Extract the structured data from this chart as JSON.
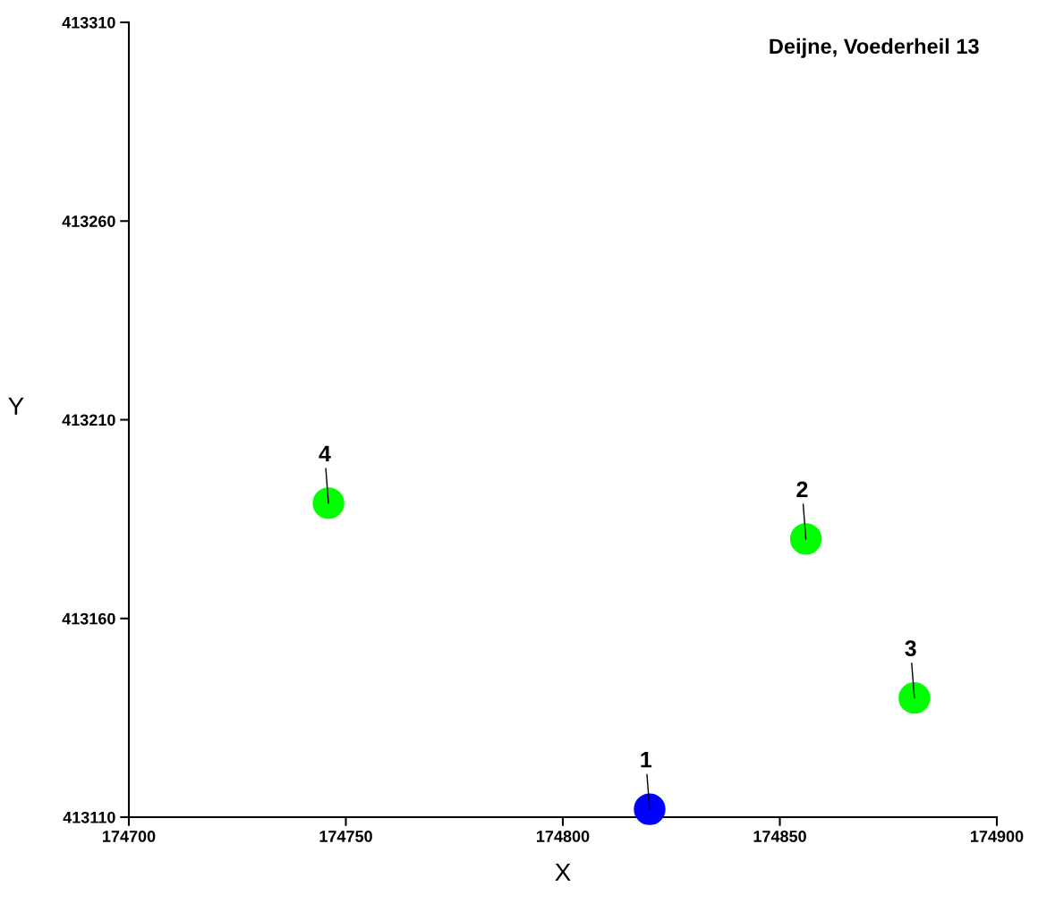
{
  "chart_data": {
    "type": "scatter",
    "title": "Deijne, Voederheil 13",
    "xlabel": "X",
    "ylabel": "Y",
    "x": [
      174820,
      174856,
      174881,
      174746
    ],
    "values": [
      413112,
      413180,
      413140,
      413189
    ],
    "colors": [
      "#0000ff",
      "#00ff00",
      "#00ff00",
      "#00ff00"
    ],
    "marker": "circle",
    "xlim": [
      174700,
      174900
    ],
    "xticks": [
      174700,
      174750,
      174800,
      174850,
      174900
    ],
    "ylim": [
      413110,
      413310
    ],
    "yticks": [
      413110,
      413160,
      413210,
      413260,
      413310
    ],
    "grid": false,
    "annotations": [
      {
        "text": "1",
        "x": 174820,
        "y": 413112
      },
      {
        "text": "2",
        "x": 174856,
        "y": 413180
      },
      {
        "text": "3",
        "x": 174881,
        "y": 413140
      },
      {
        "text": "4",
        "x": 174746,
        "y": 413189
      }
    ]
  }
}
